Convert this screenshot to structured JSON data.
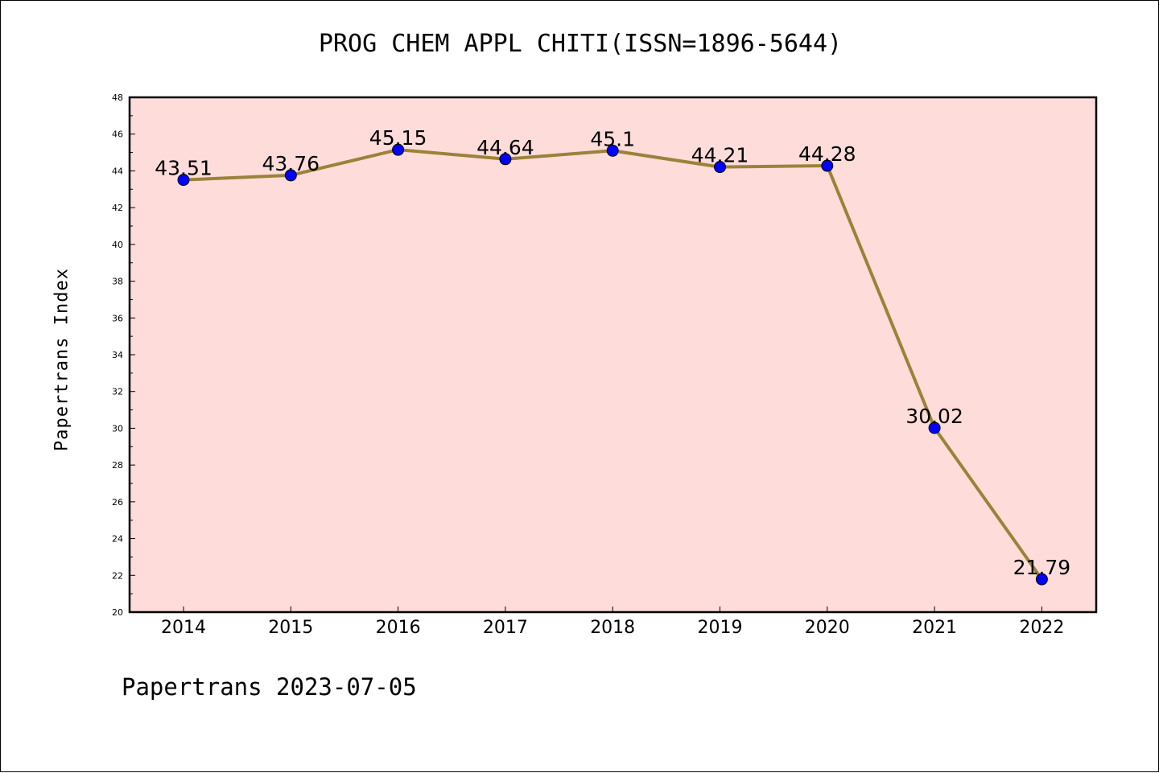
{
  "chart_data": {
    "type": "line",
    "title": "PROG CHEM APPL CHITI(ISSN=1896-5644)",
    "ylabel": "Papertrans Index",
    "xlabel": "",
    "x": [
      "2014",
      "2015",
      "2016",
      "2017",
      "2018",
      "2019",
      "2020",
      "2021",
      "2022"
    ],
    "series": [
      {
        "values": [
          43.51,
          43.76,
          45.15,
          44.64,
          45.1,
          44.21,
          44.28,
          30.02,
          21.79
        ],
        "labels": [
          "43.51",
          "43.76",
          "45.15",
          "44.64",
          "45.1",
          "44.21",
          "44.28",
          "30.02",
          "21.79"
        ],
        "line_color": "#9b8238",
        "marker_color": "#0000ff"
      }
    ],
    "ylim": [
      20,
      48
    ],
    "yticks": [
      20,
      22,
      24,
      26,
      28,
      30,
      32,
      34,
      36,
      38,
      40,
      42,
      44,
      46,
      48
    ],
    "plot_background": "#fddcda",
    "grid": false
  },
  "footer": "Papertrans 2023-07-05"
}
